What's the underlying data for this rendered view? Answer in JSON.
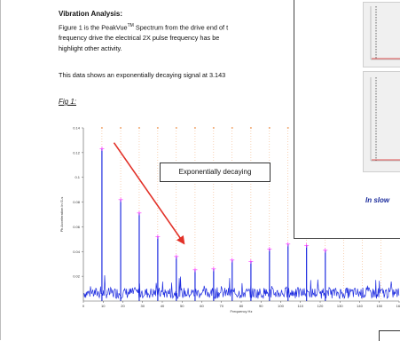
{
  "document": {
    "heading": "Vibration Analysis:",
    "para1_prefix": "Figure 1 is the PeakVue",
    "para1_tm": "TM",
    "para1_rest": " Spectrum from the drive end of t",
    "para1_line2": "frequency drive the electrical 2X pulse frequency has be",
    "para1_line3": "highlight other activity.",
    "para2": "This data shows an exponentially decaying signal at 3.143",
    "fig_label": "Fig 1:",
    "annotation": "Exponentially decaying"
  },
  "overlay": {
    "caption": "In slow"
  },
  "colors": {
    "trace": "#1f2de0",
    "peak_marker": "#ff33ff",
    "harmonic_line": "#f0a46a",
    "arrow": "#e23128",
    "overlay_caption": "#1b2c9c"
  },
  "chart_data": {
    "type": "line",
    "title": "",
    "xlabel": "Frequency Hz",
    "ylabel": "Pk Acceleration In G-s",
    "xlim": [
      0,
      160
    ],
    "ylim": [
      0,
      0.14
    ],
    "x_ticks": [
      "0",
      "10",
      "20",
      "30",
      "40",
      "50",
      "60",
      "70",
      "80",
      "90",
      "100",
      "110",
      "120",
      "130",
      "140",
      "150",
      "160"
    ],
    "y_ticks": [
      "0.14",
      "0.12",
      "0.1",
      "0.08",
      "0.06",
      "0.04",
      "0.02"
    ],
    "peaks": [
      {
        "x": 9.4,
        "y": 0.123
      },
      {
        "x": 18.9,
        "y": 0.082
      },
      {
        "x": 28.3,
        "y": 0.071
      },
      {
        "x": 37.7,
        "y": 0.052
      },
      {
        "x": 47.1,
        "y": 0.036
      },
      {
        "x": 56.6,
        "y": 0.025
      },
      {
        "x": 66.0,
        "y": 0.026
      },
      {
        "x": 75.4,
        "y": 0.033
      },
      {
        "x": 84.9,
        "y": 0.032
      },
      {
        "x": 94.3,
        "y": 0.042
      },
      {
        "x": 103.7,
        "y": 0.046
      },
      {
        "x": 113.1,
        "y": 0.045
      },
      {
        "x": 122.6,
        "y": 0.041
      }
    ],
    "harmonic_lines_x": [
      9.4,
      18.9,
      28.3,
      37.7,
      47.1,
      56.6,
      66.0,
      75.4,
      84.9,
      94.3,
      103.7,
      113.1,
      122.6,
      132.0,
      141.4,
      150.9
    ]
  }
}
